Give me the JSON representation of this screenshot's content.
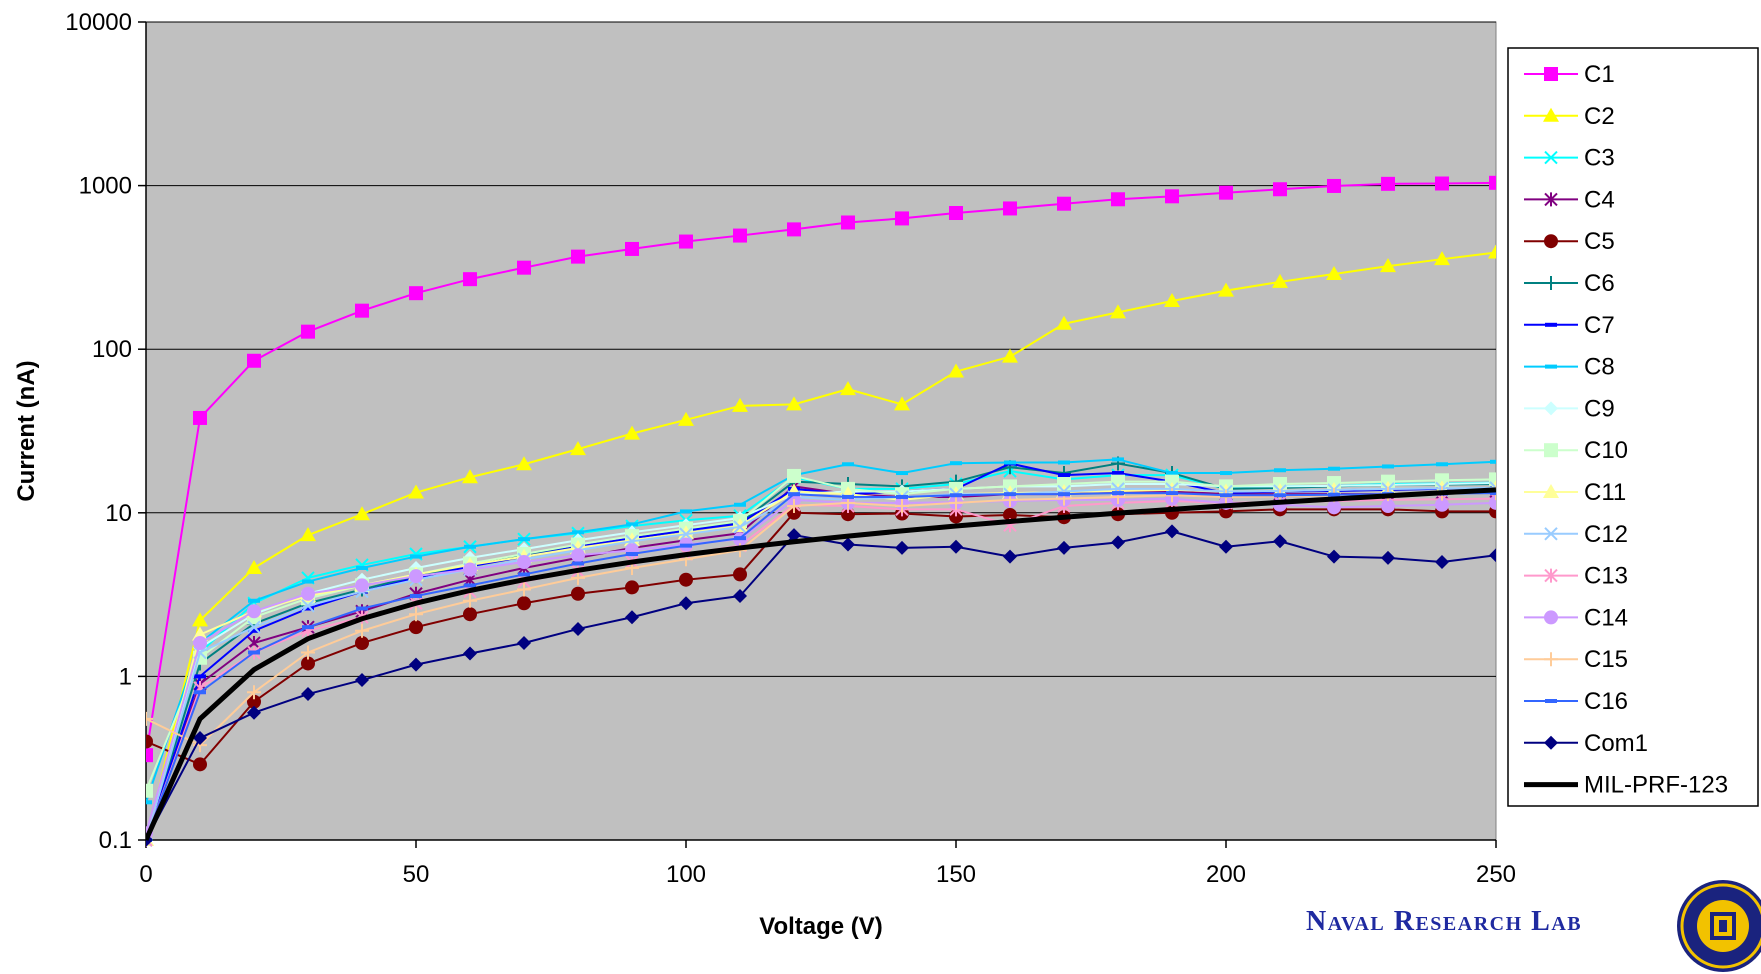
{
  "chart_data": {
    "type": "line",
    "title": "",
    "xlabel": "Voltage (V)",
    "ylabel": "Current (nA)",
    "xlim": [
      0,
      250
    ],
    "ylim": [
      0.1,
      10000
    ],
    "y_scale": "log",
    "x_ticks": [
      "0",
      "50",
      "100",
      "150",
      "200",
      "250"
    ],
    "y_ticks": [
      "0.1",
      "1",
      "10",
      "100",
      "1000",
      "10000"
    ],
    "grid": "horizontal major lines",
    "legend_position": "right",
    "plot_background": "#c0c0c0",
    "x": [
      0,
      10,
      20,
      30,
      40,
      50,
      60,
      70,
      80,
      90,
      100,
      110,
      120,
      130,
      140,
      150,
      160,
      170,
      180,
      190,
      200,
      210,
      220,
      230,
      240,
      250
    ],
    "series": [
      {
        "name": "C1",
        "color": "#ff00ff",
        "marker": "square",
        "values": [
          0.33,
          38,
          85,
          128,
          172,
          220,
          268,
          315,
          368,
          410,
          455,
          495,
          540,
          595,
          630,
          680,
          725,
          775,
          825,
          860,
          905,
          950,
          995,
          1025,
          1030,
          1040
        ]
      },
      {
        "name": "C2",
        "color": "#ffff00",
        "marker": "triangle",
        "values": [
          0.1,
          2.2,
          4.6,
          7.3,
          9.8,
          13.3,
          16.5,
          19.8,
          24.5,
          30.5,
          37,
          45,
          46,
          57,
          46,
          73,
          90,
          143,
          168,
          197,
          228,
          258,
          288,
          322,
          355,
          390
        ]
      },
      {
        "name": "C3",
        "color": "#00ffff",
        "marker": "x",
        "values": [
          0.1,
          1.4,
          2.8,
          4.0,
          4.8,
          5.6,
          6.2,
          6.9,
          7.5,
          8.3,
          9.0,
          9.6,
          16.5,
          14,
          14,
          15,
          18,
          16,
          17,
          17,
          14,
          14.5,
          14.6,
          15,
          15.1,
          15.3
        ]
      },
      {
        "name": "C4",
        "color": "#800080",
        "marker": "star",
        "values": [
          0.1,
          0.9,
          1.6,
          2.0,
          2.5,
          3.2,
          3.9,
          4.6,
          5.3,
          6.1,
          6.8,
          7.5,
          14.5,
          13,
          12.5,
          12.5,
          13,
          13,
          13.4,
          13.5,
          13,
          13,
          13,
          13,
          13.2,
          13.5
        ]
      },
      {
        "name": "C5",
        "color": "#800000",
        "marker": "circle",
        "values": [
          0.4,
          0.29,
          0.7,
          1.2,
          1.6,
          2.0,
          2.4,
          2.8,
          3.2,
          3.5,
          3.9,
          4.2,
          10.0,
          9.8,
          9.9,
          9.5,
          9.7,
          9.4,
          9.8,
          10.0,
          10.2,
          10.5,
          10.5,
          10.5,
          10.2,
          10.2
        ]
      },
      {
        "name": "C6",
        "color": "#008080",
        "marker": "plus",
        "values": [
          0.1,
          1.2,
          2.1,
          2.8,
          3.4,
          4.1,
          4.8,
          5.5,
          6.2,
          7.0,
          7.8,
          8.7,
          15.5,
          15,
          14.5,
          15.5,
          19,
          17.5,
          20,
          17.5,
          14,
          14.2,
          14.5,
          14.8,
          14.9,
          15
        ]
      },
      {
        "name": "C7",
        "color": "#0000ff",
        "marker": "dash",
        "values": [
          0.1,
          1.0,
          1.9,
          2.6,
          3.3,
          4.0,
          4.7,
          5.4,
          6.2,
          7.0,
          7.8,
          8.6,
          14,
          13,
          13.5,
          14,
          20,
          17,
          17.5,
          15.5,
          13.2,
          13.5,
          13.6,
          13.8,
          14,
          14.2
        ]
      },
      {
        "name": "C8",
        "color": "#00ccff",
        "marker": "dash",
        "values": [
          0.17,
          1.6,
          2.9,
          3.8,
          4.6,
          5.4,
          6.2,
          6.9,
          7.6,
          8.5,
          10.2,
          11.2,
          17,
          19.8,
          17.5,
          20.1,
          20.3,
          20.3,
          21.2,
          17.5,
          17.5,
          18.2,
          18.6,
          19.2,
          19.8,
          20.5
        ]
      },
      {
        "name": "C9",
        "color": "#ccffff",
        "marker": "diamond",
        "values": [
          0.1,
          1.5,
          2.4,
          3.2,
          3.9,
          4.6,
          5.3,
          6.0,
          6.8,
          7.6,
          8.4,
          9.3,
          13,
          13.5,
          13.5,
          14,
          14.5,
          14.5,
          15,
          15,
          14.5,
          14.5,
          14.6,
          14.8,
          15,
          15.2
        ]
      },
      {
        "name": "C10",
        "color": "#ccffcc",
        "marker": "square",
        "values": [
          0.2,
          1.3,
          2.3,
          3.0,
          3.6,
          4.2,
          4.9,
          5.6,
          6.4,
          7.2,
          8.0,
          8.9,
          16.8,
          14,
          13,
          14,
          14.5,
          15,
          15.5,
          15.5,
          14.5,
          15,
          15.2,
          15.5,
          15.8,
          16
        ]
      },
      {
        "name": "C11",
        "color": "#ffff99",
        "marker": "triangle",
        "values": [
          0.1,
          1.8,
          2.5,
          3.1,
          3.6,
          4.2,
          4.8,
          5.4,
          6.1,
          6.8,
          7.5,
          8.3,
          13.5,
          13,
          12,
          13,
          13.2,
          13.4,
          13.6,
          13.8,
          13.5,
          13.6,
          13.8,
          14,
          14.1,
          14.2
        ]
      },
      {
        "name": "C12",
        "color": "#99ccff",
        "marker": "x",
        "values": [
          0.1,
          1.4,
          2.0,
          2.7,
          3.3,
          3.9,
          4.5,
          5.2,
          5.9,
          6.7,
          7.4,
          8.2,
          12.5,
          12,
          12.5,
          13,
          13,
          13.5,
          14,
          14,
          13.5,
          13.6,
          13.8,
          14,
          14.1,
          14.2
        ]
      },
      {
        "name": "C13",
        "color": "#ff99cc",
        "marker": "star",
        "values": [
          0.1,
          0.85,
          1.4,
          1.9,
          2.3,
          2.8,
          3.3,
          3.8,
          4.4,
          5.0,
          5.6,
          6.3,
          11.2,
          11,
          10.5,
          10.5,
          8.4,
          11,
          11.5,
          11.8,
          11.5,
          11.6,
          11.8,
          12,
          12.1,
          12.2
        ]
      },
      {
        "name": "C14",
        "color": "#cc99ff",
        "marker": "circle",
        "values": [
          0.11,
          1.6,
          2.5,
          3.2,
          3.6,
          4.1,
          4.5,
          5.0,
          5.5,
          5.9,
          6.4,
          6.9,
          12,
          11.5,
          11.5,
          11.6,
          11.8,
          12,
          12,
          12.2,
          11.5,
          11.2,
          10.8,
          11,
          11.2,
          11.5
        ]
      },
      {
        "name": "C15",
        "color": "#ffcc99",
        "marker": "plus",
        "values": [
          0.55,
          0.38,
          0.8,
          1.4,
          1.9,
          2.4,
          2.9,
          3.4,
          4.0,
          4.6,
          5.2,
          5.9,
          11,
          11.5,
          11,
          11.5,
          12,
          12.2,
          12.5,
          12.8,
          12.5,
          12.6,
          12.8,
          13,
          13.1,
          13.2
        ]
      },
      {
        "name": "C16",
        "color": "#3366ff",
        "marker": "dash",
        "values": [
          0.1,
          0.8,
          1.4,
          2.0,
          2.6,
          3.1,
          3.6,
          4.2,
          4.9,
          5.6,
          6.3,
          7.0,
          13,
          12.5,
          12.5,
          12.8,
          13,
          13,
          13.2,
          13.2,
          12.8,
          12.8,
          12.9,
          13,
          13.1,
          13.2
        ]
      },
      {
        "name": "Com1",
        "color": "#000080",
        "marker": "diamond",
        "values": [
          0.1,
          0.42,
          0.6,
          0.78,
          0.95,
          1.18,
          1.38,
          1.6,
          1.95,
          2.3,
          2.8,
          3.1,
          7.3,
          6.4,
          6.1,
          6.2,
          5.4,
          6.1,
          6.6,
          7.7,
          6.2,
          6.7,
          5.4,
          5.3,
          5.0,
          5.5
        ]
      },
      {
        "name": "MIL-PRF-123",
        "color": "#000000",
        "marker": "none",
        "values": [
          0.1,
          0.55,
          1.1,
          1.7,
          2.25,
          2.8,
          3.35,
          3.9,
          4.45,
          5.0,
          5.55,
          6.1,
          6.65,
          7.2,
          7.75,
          8.3,
          8.85,
          9.4,
          9.95,
          10.5,
          11.05,
          11.6,
          12.15,
          12.7,
          13.25,
          13.8
        ]
      }
    ]
  },
  "branding": {
    "lab_name": "Naval Research Lab",
    "seal_icon": "nrl-seal-icon",
    "seal_text": "NAVAL RESEARCH LABORATORY"
  }
}
